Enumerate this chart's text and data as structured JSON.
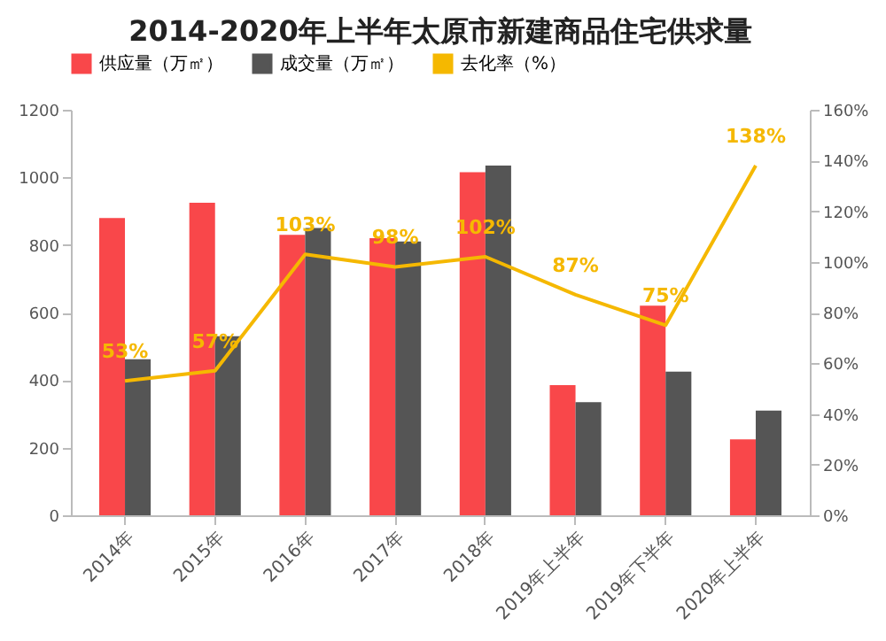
{
  "chart_data": {
    "type": "bar",
    "title": "2014-2020年上半年太原市新建商品住宅供求量",
    "categories": [
      "2014年",
      "2015年",
      "2016年",
      "2017年",
      "2018年",
      "2019年上半年",
      "2019年下半年",
      "2020年上半年"
    ],
    "series": [
      {
        "name": "供应量（万㎡）",
        "color": "#f9474a",
        "values": [
          880,
          925,
          830,
          820,
          1015,
          385,
          620,
          225
        ]
      },
      {
        "name": "成交量（万㎡）",
        "color": "#555555",
        "values": [
          462,
          530,
          850,
          810,
          1035,
          335,
          425,
          310
        ]
      },
      {
        "name": "去化率（%）",
        "type": "line",
        "axis": "y2",
        "color": "#f5b800",
        "values": [
          53,
          57,
          103,
          98,
          102,
          87,
          75,
          138
        ],
        "value_labels": [
          "53%",
          "57%",
          "103%",
          "98%",
          "102%",
          "87%",
          "75%",
          "138%"
        ]
      }
    ],
    "ylim": [
      0,
      1200
    ],
    "yticks": [
      0,
      200,
      400,
      600,
      800,
      1000,
      1200
    ],
    "y2lim": [
      0,
      160
    ],
    "y2ticks": [
      {
        "value": 0,
        "label": "0%"
      },
      {
        "value": 20,
        "label": "20%"
      },
      {
        "value": 40,
        "label": "40%"
      },
      {
        "value": 60,
        "label": "60%"
      },
      {
        "value": 80,
        "label": "80%"
      },
      {
        "value": 100,
        "label": "100%"
      },
      {
        "value": 120,
        "label": "120%"
      },
      {
        "value": 140,
        "label": "140%"
      },
      {
        "value": 160,
        "label": "160%"
      }
    ],
    "legend": "top",
    "grid": false
  }
}
